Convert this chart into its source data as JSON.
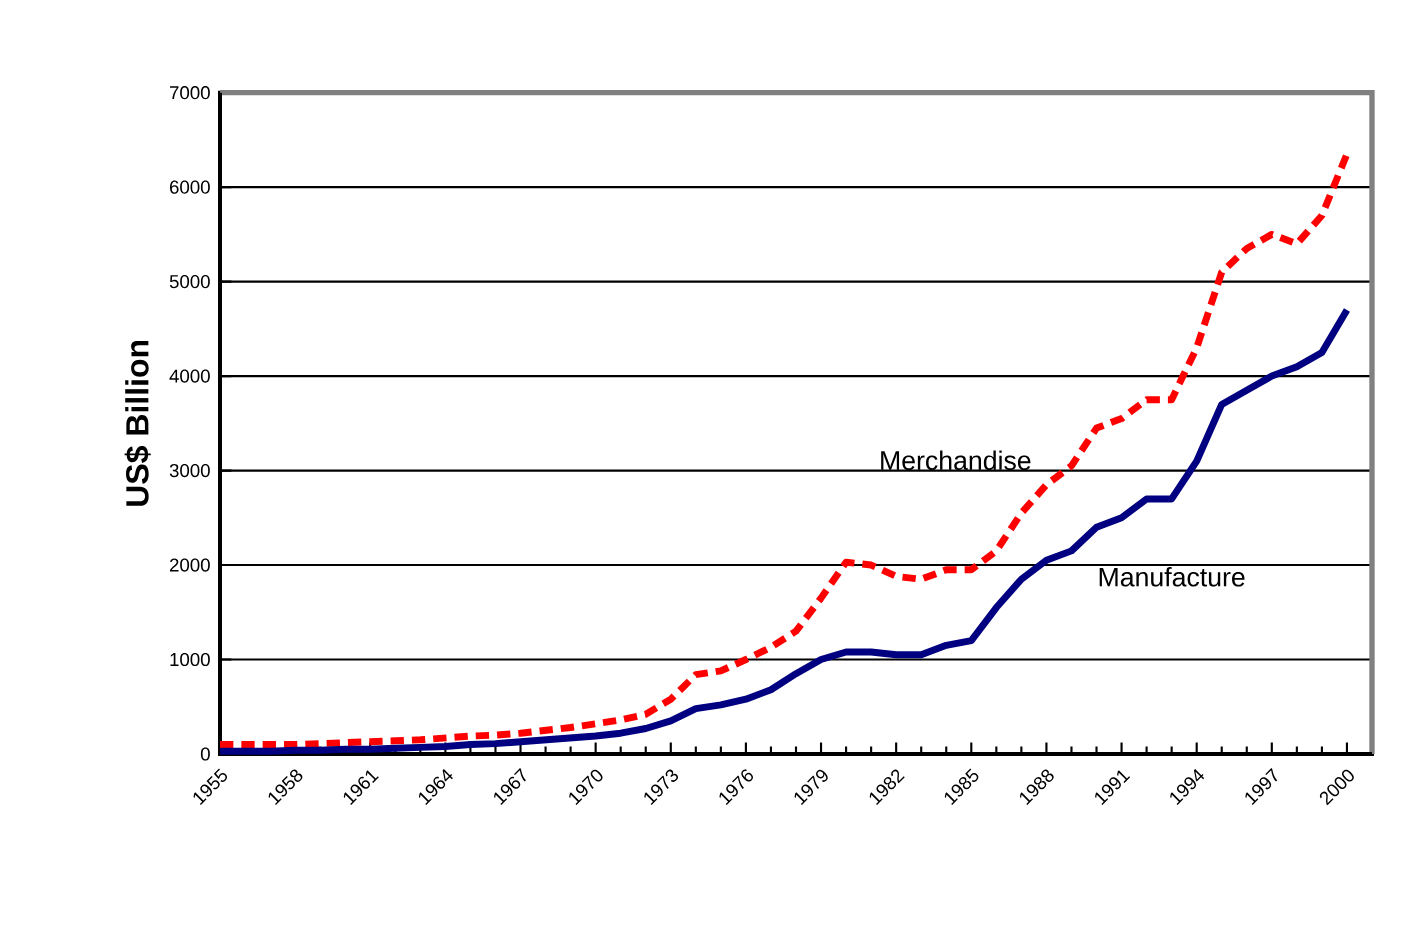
{
  "chart_data": {
    "type": "line",
    "ylabel": "US$ Billion",
    "x": [
      1955,
      1956,
      1957,
      1958,
      1959,
      1960,
      1961,
      1962,
      1963,
      1964,
      1965,
      1966,
      1967,
      1968,
      1969,
      1970,
      1971,
      1972,
      1973,
      1974,
      1975,
      1976,
      1977,
      1978,
      1979,
      1980,
      1981,
      1982,
      1983,
      1984,
      1985,
      1986,
      1987,
      1988,
      1989,
      1990,
      1991,
      1992,
      1993,
      1994,
      1995,
      1996,
      1997,
      1998,
      1999,
      2000
    ],
    "series": [
      {
        "name": "Merchandise",
        "color": "#ff0000",
        "line_style": "dashed",
        "values": [
          100,
          100,
          100,
          100,
          110,
          120,
          130,
          140,
          150,
          170,
          190,
          200,
          220,
          250,
          280,
          320,
          360,
          420,
          580,
          840,
          880,
          1000,
          1130,
          1300,
          1650,
          2030,
          2000,
          1880,
          1850,
          1950,
          1950,
          2150,
          2550,
          2850,
          3050,
          3450,
          3550,
          3750,
          3750,
          4300,
          5100,
          5350,
          5500,
          5400,
          5700,
          6350
        ]
      },
      {
        "name": "Manufacture",
        "color": "#000080",
        "line_style": "solid",
        "values": [
          30,
          30,
          30,
          40,
          40,
          50,
          50,
          60,
          70,
          80,
          100,
          110,
          130,
          150,
          170,
          190,
          220,
          270,
          350,
          480,
          520,
          580,
          680,
          850,
          1000,
          1080,
          1080,
          1050,
          1050,
          1150,
          1200,
          1550,
          1850,
          2050,
          2150,
          2400,
          2500,
          2700,
          2700,
          3100,
          3700,
          3850,
          4000,
          4100,
          4250,
          4700
        ]
      }
    ],
    "xlim": [
      1955,
      2001
    ],
    "xticks": [
      1955,
      1958,
      1961,
      1964,
      1967,
      1970,
      1973,
      1976,
      1979,
      1982,
      1985,
      1988,
      1991,
      1994,
      1997,
      2000
    ],
    "ylim": [
      0,
      7000
    ],
    "yticks": [
      0,
      1000,
      2000,
      3000,
      4000,
      5000,
      6000,
      7000
    ],
    "grid": "y",
    "marker": "none"
  }
}
